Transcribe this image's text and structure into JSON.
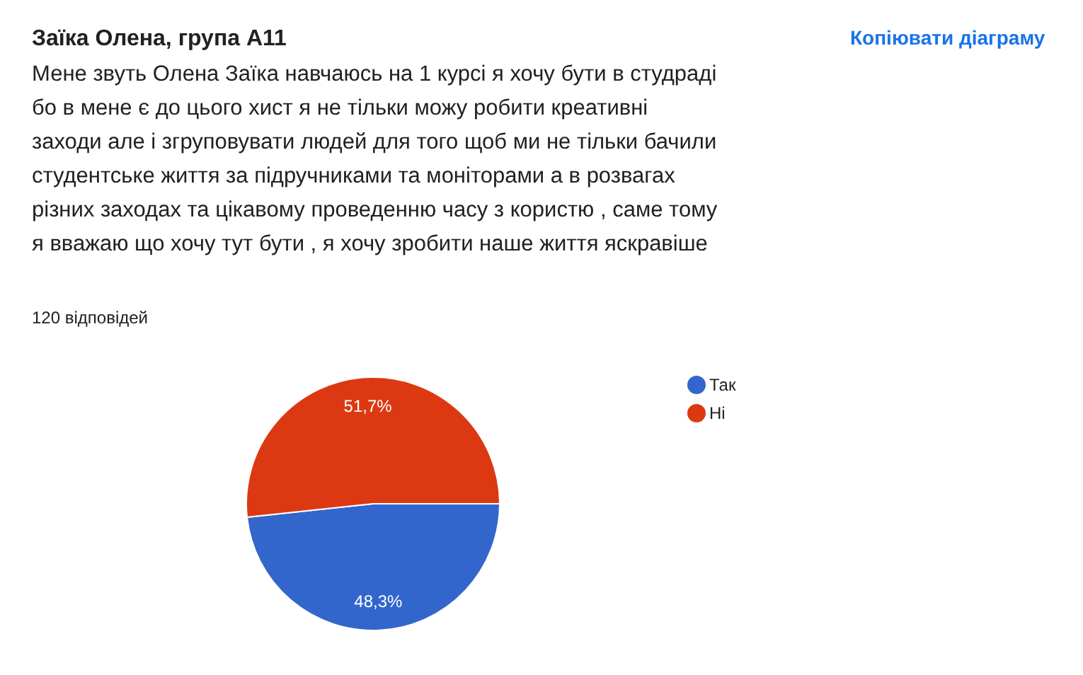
{
  "chart_data": {
    "type": "pie",
    "title": "Заїка Олена, група А11",
    "subtitle": "Мене звуть Олена Заїка навчаюсь на 1 курсі я хочу бути в студраді\nбо в  мене є до цього хист я не тільки можу робити креативні\nзаходи але і згруповувати людей для того щоб ми не тільки бачили\nстудентське життя за підручниками та моніторами а в розвагах\nрізних заходах та цікавому проведенню часу з користю , саме тому\nя вважаю що хочу тут бути , я хочу зробити наше життя яскравіше",
    "annotations": [
      "120 відповідей",
      "Копіювати діаграму"
    ],
    "categories": [
      "Так",
      "Ні"
    ],
    "values": [
      48.3,
      51.7
    ],
    "colors": [
      "#3366cc",
      "#dc3912"
    ],
    "value_labels": [
      "48,3%",
      "51,7%"
    ],
    "legend": "top right"
  }
}
